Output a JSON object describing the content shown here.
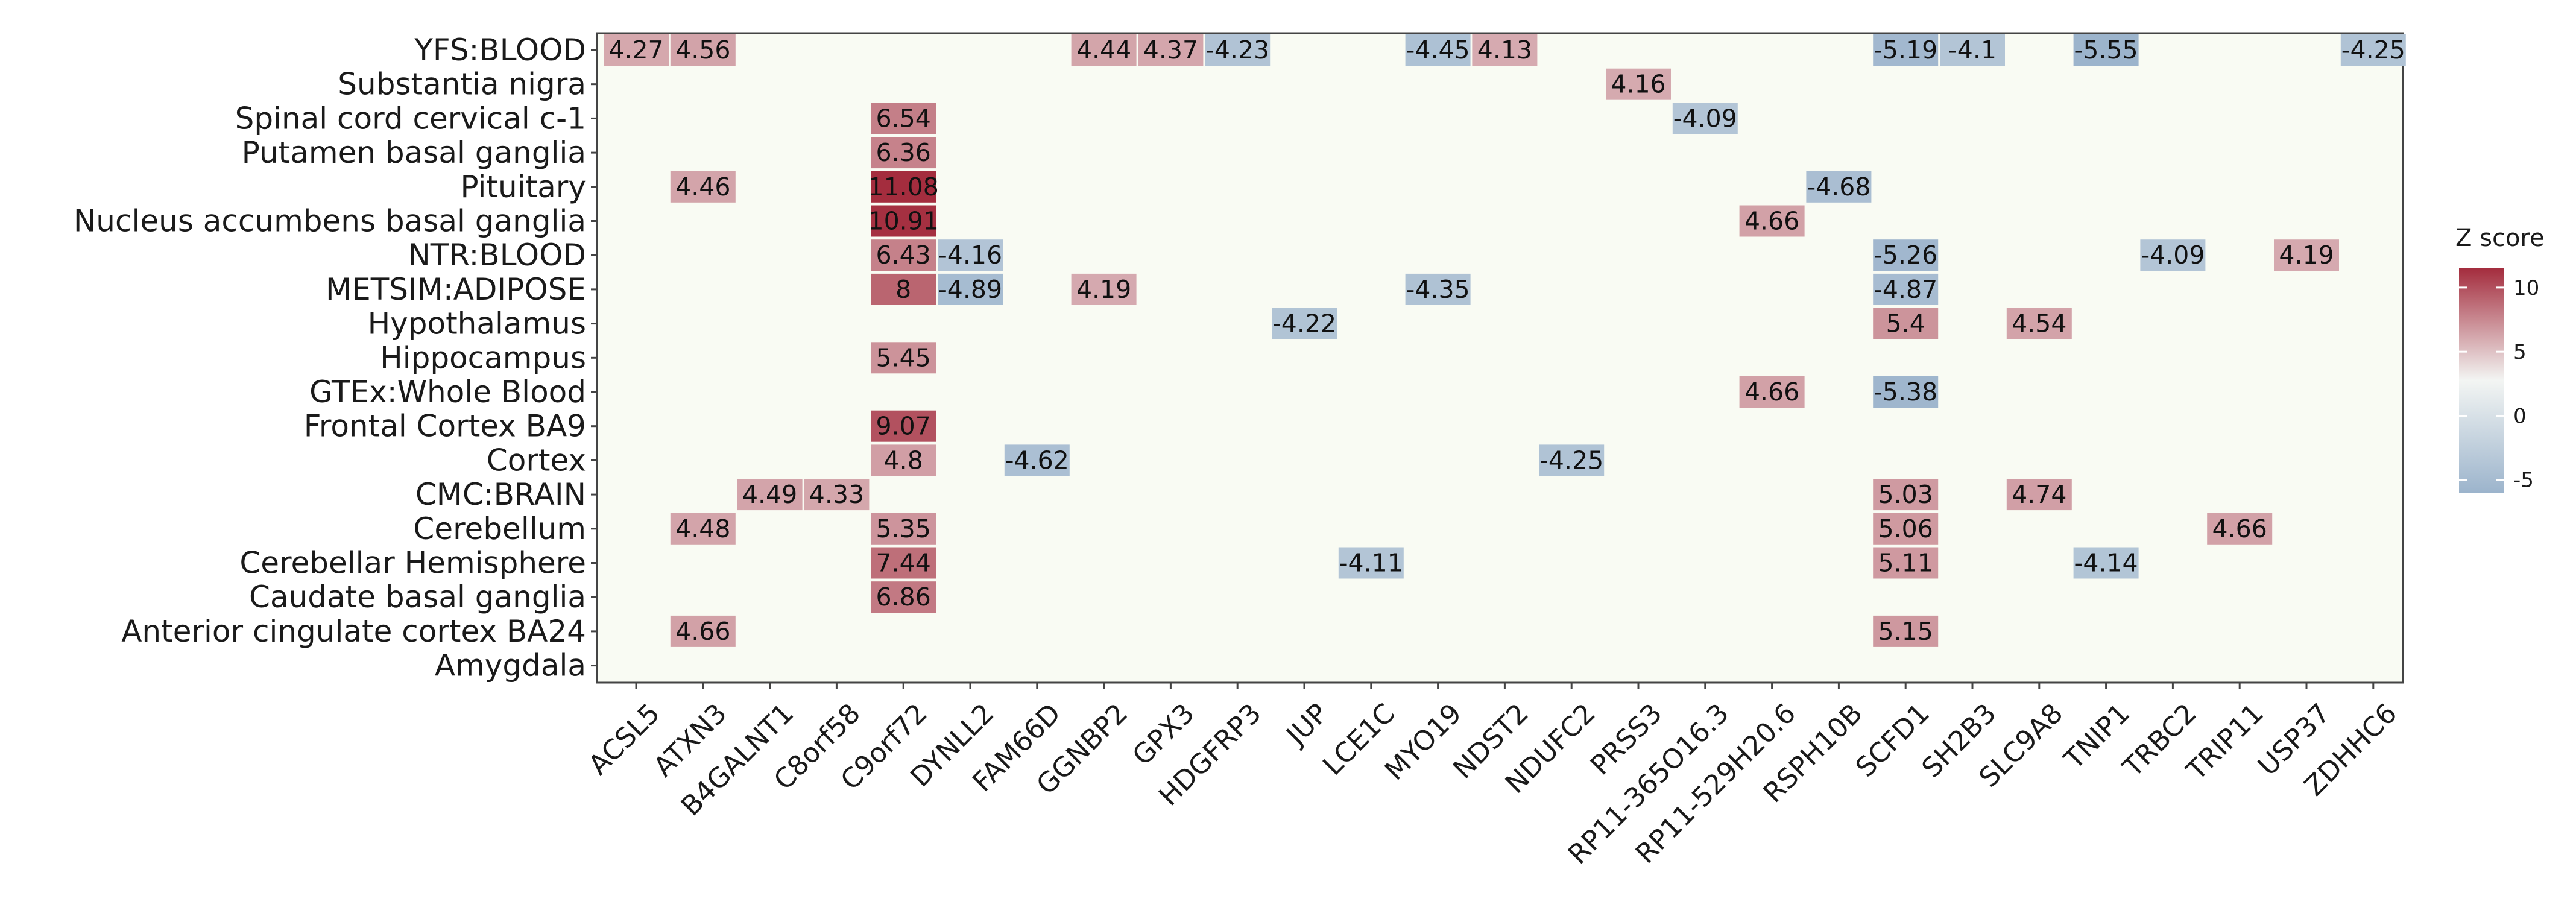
{
  "chart_data": {
    "type": "heatmap",
    "title": "",
    "xlabel": "",
    "ylabel": "",
    "rows": [
      "YFS:BLOOD",
      "Substantia nigra",
      "Spinal cord cervical c-1",
      "Putamen basal ganglia",
      "Pituitary",
      "Nucleus accumbens basal ganglia",
      "NTR:BLOOD",
      "METSIM:ADIPOSE",
      "Hypothalamus",
      "Hippocampus",
      "GTEx:Whole Blood",
      "Frontal Cortex BA9",
      "Cortex",
      "CMC:BRAIN",
      "Cerebellum",
      "Cerebellar Hemisphere",
      "Caudate basal ganglia",
      "Anterior cingulate cortex BA24",
      "Amygdala"
    ],
    "columns": [
      "ACSL5",
      "ATXN3",
      "B4GALNT1",
      "C8orf58",
      "C9orf72",
      "DYNLL2",
      "FAM66D",
      "GGNBP2",
      "GPX3",
      "HDGFRP3",
      "JUP",
      "LCE1C",
      "MYO19",
      "NDST2",
      "NDUFC2",
      "PRSS3",
      "RP11-365O16.3",
      "RP11-529H20.6",
      "RSPH10B",
      "SCFD1",
      "SH2B3",
      "SLC9A8",
      "TNIP1",
      "TRBC2",
      "TRIP11",
      "USP37",
      "ZDHHC6"
    ],
    "cells": [
      {
        "row": "YFS:BLOOD",
        "col": "ACSL5",
        "value": 4.27,
        "label": "4.27"
      },
      {
        "row": "YFS:BLOOD",
        "col": "ATXN3",
        "value": 4.56,
        "label": "4.56"
      },
      {
        "row": "YFS:BLOOD",
        "col": "GGNBP2",
        "value": 4.44,
        "label": "4.44"
      },
      {
        "row": "YFS:BLOOD",
        "col": "GPX3",
        "value": 4.37,
        "label": "4.37"
      },
      {
        "row": "YFS:BLOOD",
        "col": "HDGFRP3",
        "value": -4.23,
        "label": "-4.23"
      },
      {
        "row": "YFS:BLOOD",
        "col": "MYO19",
        "value": -4.45,
        "label": "-4.45"
      },
      {
        "row": "YFS:BLOOD",
        "col": "NDST2",
        "value": 4.13,
        "label": "4.13"
      },
      {
        "row": "YFS:BLOOD",
        "col": "SCFD1",
        "value": -5.19,
        "label": "-5.19"
      },
      {
        "row": "YFS:BLOOD",
        "col": "SH2B3",
        "value": -4.1,
        "label": "-4.1"
      },
      {
        "row": "YFS:BLOOD",
        "col": "TNIP1",
        "value": -5.55,
        "label": "-5.55"
      },
      {
        "row": "YFS:BLOOD",
        "col": "ZDHHC6",
        "value": -4.25,
        "label": "-4.25"
      },
      {
        "row": "Substantia nigra",
        "col": "PRSS3",
        "value": 4.16,
        "label": "4.16"
      },
      {
        "row": "Spinal cord cervical c-1",
        "col": "C9orf72",
        "value": 6.54,
        "label": "6.54"
      },
      {
        "row": "Spinal cord cervical c-1",
        "col": "RP11-365O16.3",
        "value": -4.09,
        "label": "-4.09"
      },
      {
        "row": "Putamen basal ganglia",
        "col": "C9orf72",
        "value": 6.36,
        "label": "6.36"
      },
      {
        "row": "Pituitary",
        "col": "ATXN3",
        "value": 4.46,
        "label": "4.46"
      },
      {
        "row": "Pituitary",
        "col": "C9orf72",
        "value": 11.08,
        "label": "11.08"
      },
      {
        "row": "Pituitary",
        "col": "RSPH10B",
        "value": -4.68,
        "label": "-4.68"
      },
      {
        "row": "Nucleus accumbens basal ganglia",
        "col": "C9orf72",
        "value": 10.91,
        "label": "10.91"
      },
      {
        "row": "Nucleus accumbens basal ganglia",
        "col": "RP11-529H20.6",
        "value": 4.66,
        "label": "4.66"
      },
      {
        "row": "NTR:BLOOD",
        "col": "C9orf72",
        "value": 6.43,
        "label": "6.43"
      },
      {
        "row": "NTR:BLOOD",
        "col": "DYNLL2",
        "value": -4.16,
        "label": "-4.16"
      },
      {
        "row": "NTR:BLOOD",
        "col": "SCFD1",
        "value": -5.26,
        "label": "-5.26"
      },
      {
        "row": "NTR:BLOOD",
        "col": "TRBC2",
        "value": -4.09,
        "label": "-4.09"
      },
      {
        "row": "NTR:BLOOD",
        "col": "USP37",
        "value": 4.19,
        "label": "4.19"
      },
      {
        "row": "METSIM:ADIPOSE",
        "col": "C9orf72",
        "value": 8,
        "label": "8"
      },
      {
        "row": "METSIM:ADIPOSE",
        "col": "DYNLL2",
        "value": -4.89,
        "label": "-4.89"
      },
      {
        "row": "METSIM:ADIPOSE",
        "col": "GGNBP2",
        "value": 4.19,
        "label": "4.19"
      },
      {
        "row": "METSIM:ADIPOSE",
        "col": "MYO19",
        "value": -4.35,
        "label": "-4.35"
      },
      {
        "row": "METSIM:ADIPOSE",
        "col": "SCFD1",
        "value": -4.87,
        "label": "-4.87"
      },
      {
        "row": "Hypothalamus",
        "col": "JUP",
        "value": -4.22,
        "label": "-4.22"
      },
      {
        "row": "Hypothalamus",
        "col": "SCFD1",
        "value": 5.4,
        "label": "5.4"
      },
      {
        "row": "Hypothalamus",
        "col": "SLC9A8",
        "value": 4.54,
        "label": "4.54"
      },
      {
        "row": "Hippocampus",
        "col": "C9orf72",
        "value": 5.45,
        "label": "5.45"
      },
      {
        "row": "GTEx:Whole Blood",
        "col": "RP11-529H20.6",
        "value": 4.66,
        "label": "4.66"
      },
      {
        "row": "GTEx:Whole Blood",
        "col": "SCFD1",
        "value": -5.38,
        "label": "-5.38"
      },
      {
        "row": "Frontal Cortex BA9",
        "col": "C9orf72",
        "value": 9.07,
        "label": "9.07"
      },
      {
        "row": "Cortex",
        "col": "C9orf72",
        "value": 4.8,
        "label": "4.8"
      },
      {
        "row": "Cortex",
        "col": "FAM66D",
        "value": -4.62,
        "label": "-4.62"
      },
      {
        "row": "Cortex",
        "col": "NDUFC2",
        "value": -4.25,
        "label": "-4.25"
      },
      {
        "row": "CMC:BRAIN",
        "col": "B4GALNT1",
        "value": 4.49,
        "label": "4.49"
      },
      {
        "row": "CMC:BRAIN",
        "col": "C8orf58",
        "value": 4.33,
        "label": "4.33"
      },
      {
        "row": "CMC:BRAIN",
        "col": "SCFD1",
        "value": 5.03,
        "label": "5.03"
      },
      {
        "row": "CMC:BRAIN",
        "col": "SLC9A8",
        "value": 4.74,
        "label": "4.74"
      },
      {
        "row": "Cerebellum",
        "col": "ATXN3",
        "value": 4.48,
        "label": "4.48"
      },
      {
        "row": "Cerebellum",
        "col": "C9orf72",
        "value": 5.35,
        "label": "5.35"
      },
      {
        "row": "Cerebellum",
        "col": "SCFD1",
        "value": 5.06,
        "label": "5.06"
      },
      {
        "row": "Cerebellum",
        "col": "TRIP11",
        "value": 4.66,
        "label": "4.66"
      },
      {
        "row": "Cerebellar Hemisphere",
        "col": "C9orf72",
        "value": 7.44,
        "label": "7.44"
      },
      {
        "row": "Cerebellar Hemisphere",
        "col": "LCE1C",
        "value": -4.11,
        "label": "-4.11"
      },
      {
        "row": "Cerebellar Hemisphere",
        "col": "SCFD1",
        "value": 5.11,
        "label": "5.11"
      },
      {
        "row": "Cerebellar Hemisphere",
        "col": "TNIP1",
        "value": -4.14,
        "label": "-4.14"
      },
      {
        "row": "Caudate basal ganglia",
        "col": "C9orf72",
        "value": 6.86,
        "label": "6.86"
      },
      {
        "row": "Anterior cingulate cortex BA24",
        "col": "ATXN3",
        "value": 4.66,
        "label": "4.66"
      },
      {
        "row": "Anterior cingulate cortex BA24",
        "col": "SCFD1",
        "value": 5.15,
        "label": "5.15"
      }
    ],
    "legend": {
      "title": "Z score",
      "ticks": [
        10,
        5,
        0,
        -5
      ],
      "range": [
        -5.55,
        11.08
      ],
      "colors": {
        "low": "#9cb4cc",
        "mid": "#f3f5f3",
        "high": "#a42d3e"
      }
    },
    "background_color": "#f9fbf3",
    "grid": false
  }
}
